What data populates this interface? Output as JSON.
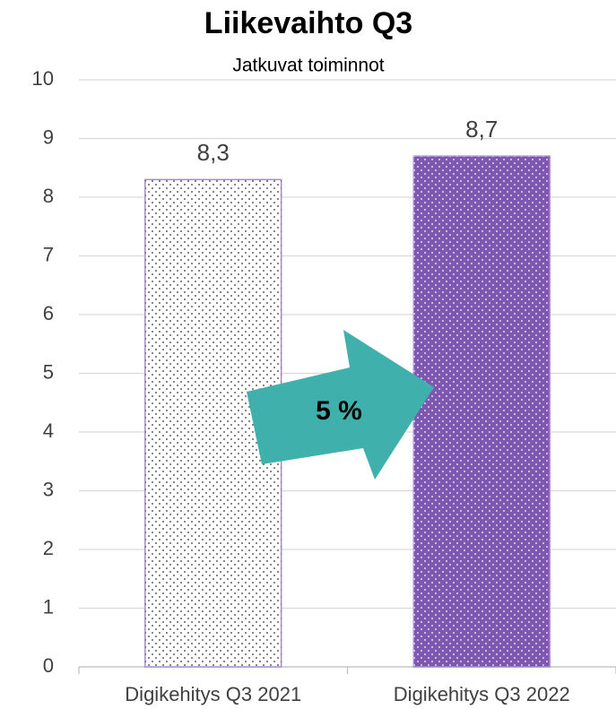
{
  "chart_data": {
    "type": "bar",
    "title": "Liikevaihto Q3",
    "subtitle": "Jatkuvat toiminnot",
    "categories": [
      "Digikehitys Q3 2021",
      "Digikehitys Q3 2022"
    ],
    "values": [
      8.3,
      8.7
    ],
    "value_labels": [
      "8,3",
      "8,7"
    ],
    "colors": [
      "#ffffff",
      "#7e57b0"
    ],
    "ylim": [
      0,
      10
    ],
    "yticks": [
      0,
      1,
      2,
      3,
      4,
      5,
      6,
      7,
      8,
      9,
      10
    ],
    "grid": true,
    "annotation": "5 %"
  }
}
